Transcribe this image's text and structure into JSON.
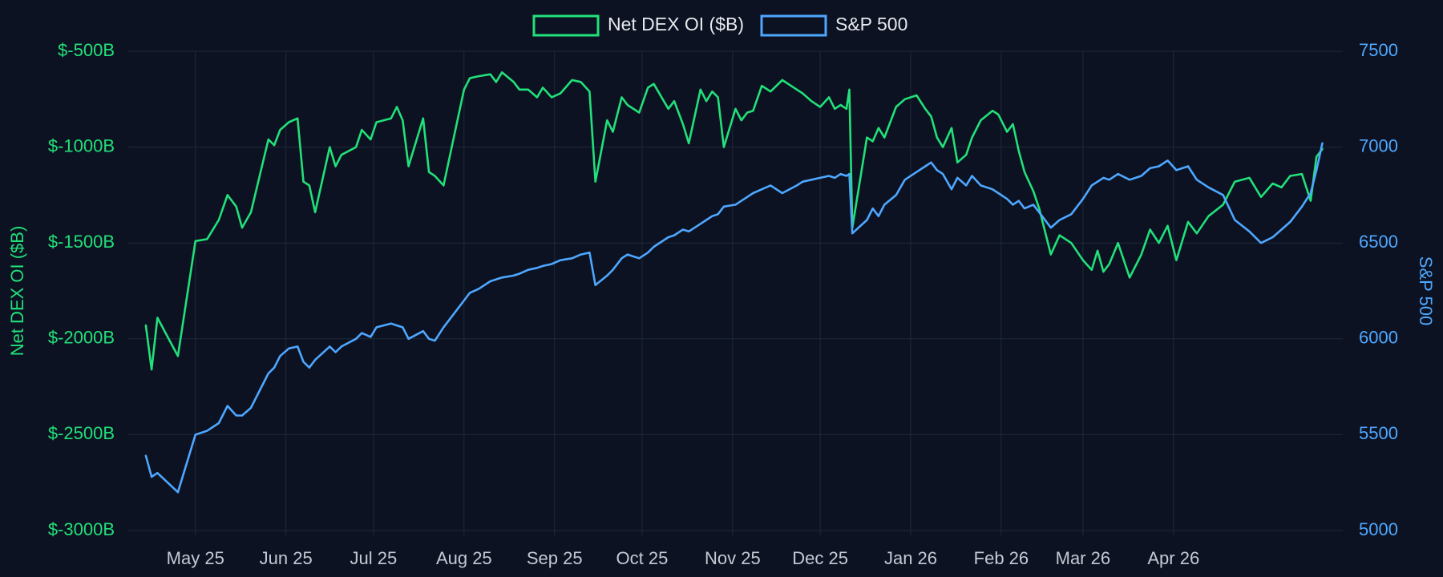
{
  "chart_data": {
    "type": "line",
    "title": "",
    "xlabel": "",
    "legend": {
      "placement": "top-center"
    },
    "grid": true,
    "x_ticks": [
      "May 25",
      "Jun 25",
      "Jul 25",
      "Aug 25",
      "Sep 25",
      "Oct 25",
      "Nov 25",
      "Dec 25",
      "Jan 26",
      "Feb 26",
      "Mar 26",
      "Apr 26"
    ],
    "y_left": {
      "label": "Net DEX OI ($B)",
      "range": [
        -3000,
        -500
      ],
      "ticks": [
        "$-500B",
        "$-1000B",
        "$-1500B",
        "$-2000B",
        "$-2500B",
        "$-3000B"
      ],
      "color": "#22e07a"
    },
    "y_right": {
      "label": "S&P 500",
      "range": [
        5000,
        7500
      ],
      "ticks": [
        "7500",
        "7000",
        "6500",
        "6000",
        "5500",
        "5000"
      ],
      "color": "#4ea7ff"
    },
    "series": [
      {
        "name": "Net DEX OI ($B)",
        "axis": "left",
        "color": "#22e07a",
        "points": [
          [
            "2025-04-14",
            -1930
          ],
          [
            "2025-04-16",
            -2160
          ],
          [
            "2025-04-18",
            -1890
          ],
          [
            "2025-04-25",
            -2090
          ],
          [
            "2025-05-01",
            -1490
          ],
          [
            "2025-05-05",
            -1480
          ],
          [
            "2025-05-09",
            -1380
          ],
          [
            "2025-05-12",
            -1250
          ],
          [
            "2025-05-15",
            -1310
          ],
          [
            "2025-05-17",
            -1420
          ],
          [
            "2025-05-20",
            -1340
          ],
          [
            "2025-05-26",
            -960
          ],
          [
            "2025-05-28",
            -990
          ],
          [
            "2025-05-30",
            -910
          ],
          [
            "2025-06-02",
            -870
          ],
          [
            "2025-06-05",
            -850
          ],
          [
            "2025-06-07",
            -1180
          ],
          [
            "2025-06-09",
            -1200
          ],
          [
            "2025-06-11",
            -1340
          ],
          [
            "2025-06-16",
            -1000
          ],
          [
            "2025-06-18",
            -1100
          ],
          [
            "2025-06-20",
            -1040
          ],
          [
            "2025-06-25",
            -1000
          ],
          [
            "2025-06-27",
            -910
          ],
          [
            "2025-06-30",
            -960
          ],
          [
            "2025-07-02",
            -870
          ],
          [
            "2025-07-07",
            -850
          ],
          [
            "2025-07-09",
            -790
          ],
          [
            "2025-07-11",
            -860
          ],
          [
            "2025-07-13",
            -1100
          ],
          [
            "2025-07-18",
            -850
          ],
          [
            "2025-07-20",
            -1130
          ],
          [
            "2025-07-22",
            -1150
          ],
          [
            "2025-07-25",
            -1200
          ],
          [
            "2025-08-01",
            -700
          ],
          [
            "2025-08-03",
            -640
          ],
          [
            "2025-08-06",
            -630
          ],
          [
            "2025-08-10",
            -620
          ],
          [
            "2025-08-12",
            -660
          ],
          [
            "2025-08-14",
            -610
          ],
          [
            "2025-08-18",
            -660
          ],
          [
            "2025-08-20",
            -700
          ],
          [
            "2025-08-23",
            -700
          ],
          [
            "2025-08-26",
            -740
          ],
          [
            "2025-08-28",
            -690
          ],
          [
            "2025-08-31",
            -740
          ],
          [
            "2025-09-03",
            -720
          ],
          [
            "2025-09-07",
            -650
          ],
          [
            "2025-09-10",
            -660
          ],
          [
            "2025-09-13",
            -710
          ],
          [
            "2025-09-15",
            -1180
          ],
          [
            "2025-09-19",
            -860
          ],
          [
            "2025-09-21",
            -920
          ],
          [
            "2025-09-24",
            -740
          ],
          [
            "2025-09-26",
            -780
          ],
          [
            "2025-09-30",
            -820
          ],
          [
            "2025-10-03",
            -690
          ],
          [
            "2025-10-05",
            -670
          ],
          [
            "2025-10-10",
            -800
          ],
          [
            "2025-10-12",
            -760
          ],
          [
            "2025-10-15",
            -880
          ],
          [
            "2025-10-17",
            -980
          ],
          [
            "2025-10-21",
            -700
          ],
          [
            "2025-10-23",
            -760
          ],
          [
            "2025-10-25",
            -710
          ],
          [
            "2025-10-27",
            -740
          ],
          [
            "2025-10-29",
            -1000
          ],
          [
            "2025-11-02",
            -800
          ],
          [
            "2025-11-04",
            -860
          ],
          [
            "2025-11-06",
            -820
          ],
          [
            "2025-11-08",
            -810
          ],
          [
            "2025-11-11",
            -680
          ],
          [
            "2025-11-14",
            -710
          ],
          [
            "2025-11-18",
            -650
          ],
          [
            "2025-11-23",
            -700
          ],
          [
            "2025-11-25",
            -720
          ],
          [
            "2025-11-28",
            -760
          ],
          [
            "2025-12-01",
            -790
          ],
          [
            "2025-12-04",
            -740
          ],
          [
            "2025-12-06",
            -800
          ],
          [
            "2025-12-08",
            -780
          ],
          [
            "2025-12-10",
            -800
          ],
          [
            "2025-12-11",
            -700
          ],
          [
            "2025-12-12",
            -1420
          ],
          [
            "2025-12-17",
            -950
          ],
          [
            "2025-12-19",
            -970
          ],
          [
            "2025-12-21",
            -900
          ],
          [
            "2025-12-23",
            -950
          ],
          [
            "2025-12-27",
            -790
          ],
          [
            "2025-12-30",
            -750
          ],
          [
            "2026-01-03",
            -730
          ],
          [
            "2026-01-06",
            -800
          ],
          [
            "2026-01-08",
            -840
          ],
          [
            "2026-01-10",
            -950
          ],
          [
            "2026-01-12",
            -1000
          ],
          [
            "2026-01-15",
            -900
          ],
          [
            "2026-01-17",
            -1080
          ],
          [
            "2026-01-20",
            -1040
          ],
          [
            "2026-01-22",
            -950
          ],
          [
            "2026-01-25",
            -860
          ],
          [
            "2026-01-29",
            -810
          ],
          [
            "2026-01-31",
            -830
          ],
          [
            "2026-02-03",
            -920
          ],
          [
            "2026-02-05",
            -880
          ],
          [
            "2026-02-07",
            -1020
          ],
          [
            "2026-02-09",
            -1130
          ],
          [
            "2026-02-12",
            -1230
          ],
          [
            "2026-02-14",
            -1320
          ],
          [
            "2026-02-18",
            -1560
          ],
          [
            "2026-02-21",
            -1460
          ],
          [
            "2026-02-25",
            -1500
          ],
          [
            "2026-03-01",
            -1590
          ],
          [
            "2026-03-04",
            -1640
          ],
          [
            "2026-03-06",
            -1540
          ],
          [
            "2026-03-08",
            -1650
          ],
          [
            "2026-03-10",
            -1610
          ],
          [
            "2026-03-13",
            -1500
          ],
          [
            "2026-03-17",
            -1680
          ],
          [
            "2026-03-21",
            -1560
          ],
          [
            "2026-03-24",
            -1430
          ],
          [
            "2026-03-27",
            -1500
          ],
          [
            "2026-03-30",
            -1410
          ],
          [
            "2026-04-02",
            -1590
          ],
          [
            "2026-04-06",
            -1390
          ],
          [
            "2026-04-09",
            -1450
          ],
          [
            "2026-04-13",
            -1360
          ],
          [
            "2026-04-18",
            -1300
          ],
          [
            "2026-04-22",
            -1180
          ],
          [
            "2026-04-27",
            -1160
          ],
          [
            "2026-05-01",
            -1260
          ],
          [
            "2026-05-05",
            -1190
          ],
          [
            "2026-05-08",
            -1210
          ],
          [
            "2026-05-11",
            -1150
          ],
          [
            "2026-05-15",
            -1140
          ],
          [
            "2026-05-18",
            -1280
          ],
          [
            "2026-05-20",
            -1050
          ],
          [
            "2026-05-22",
            -1010
          ]
        ]
      },
      {
        "name": "S&P 500",
        "axis": "right",
        "color": "#4ea7ff",
        "points": [
          [
            "2025-04-14",
            5390
          ],
          [
            "2025-04-16",
            5280
          ],
          [
            "2025-04-18",
            5300
          ],
          [
            "2025-04-25",
            5200
          ],
          [
            "2025-05-01",
            5500
          ],
          [
            "2025-05-05",
            5520
          ],
          [
            "2025-05-09",
            5560
          ],
          [
            "2025-05-12",
            5650
          ],
          [
            "2025-05-15",
            5600
          ],
          [
            "2025-05-17",
            5600
          ],
          [
            "2025-05-20",
            5640
          ],
          [
            "2025-05-26",
            5820
          ],
          [
            "2025-05-28",
            5850
          ],
          [
            "2025-05-30",
            5910
          ],
          [
            "2025-06-02",
            5950
          ],
          [
            "2025-06-05",
            5960
          ],
          [
            "2025-06-07",
            5880
          ],
          [
            "2025-06-09",
            5850
          ],
          [
            "2025-06-11",
            5890
          ],
          [
            "2025-06-16",
            5960
          ],
          [
            "2025-06-18",
            5930
          ],
          [
            "2025-06-20",
            5960
          ],
          [
            "2025-06-25",
            6000
          ],
          [
            "2025-06-27",
            6030
          ],
          [
            "2025-06-30",
            6010
          ],
          [
            "2025-07-02",
            6060
          ],
          [
            "2025-07-07",
            6080
          ],
          [
            "2025-07-09",
            6070
          ],
          [
            "2025-07-11",
            6060
          ],
          [
            "2025-07-13",
            6000
          ],
          [
            "2025-07-18",
            6040
          ],
          [
            "2025-07-20",
            6000
          ],
          [
            "2025-07-22",
            5990
          ],
          [
            "2025-07-25",
            6060
          ],
          [
            "2025-08-01",
            6200
          ],
          [
            "2025-08-03",
            6240
          ],
          [
            "2025-08-06",
            6260
          ],
          [
            "2025-08-10",
            6300
          ],
          [
            "2025-08-12",
            6310
          ],
          [
            "2025-08-14",
            6320
          ],
          [
            "2025-08-18",
            6330
          ],
          [
            "2025-08-20",
            6340
          ],
          [
            "2025-08-23",
            6360
          ],
          [
            "2025-08-26",
            6370
          ],
          [
            "2025-08-28",
            6380
          ],
          [
            "2025-08-31",
            6390
          ],
          [
            "2025-09-03",
            6410
          ],
          [
            "2025-09-07",
            6420
          ],
          [
            "2025-09-10",
            6440
          ],
          [
            "2025-09-13",
            6450
          ],
          [
            "2025-09-15",
            6280
          ],
          [
            "2025-09-19",
            6330
          ],
          [
            "2025-09-21",
            6360
          ],
          [
            "2025-09-24",
            6420
          ],
          [
            "2025-09-26",
            6440
          ],
          [
            "2025-09-30",
            6420
          ],
          [
            "2025-10-03",
            6450
          ],
          [
            "2025-10-05",
            6480
          ],
          [
            "2025-10-10",
            6530
          ],
          [
            "2025-10-12",
            6540
          ],
          [
            "2025-10-15",
            6570
          ],
          [
            "2025-10-17",
            6560
          ],
          [
            "2025-10-21",
            6600
          ],
          [
            "2025-10-23",
            6620
          ],
          [
            "2025-10-25",
            6640
          ],
          [
            "2025-10-27",
            6650
          ],
          [
            "2025-10-29",
            6690
          ],
          [
            "2025-11-02",
            6700
          ],
          [
            "2025-11-04",
            6720
          ],
          [
            "2025-11-06",
            6740
          ],
          [
            "2025-11-08",
            6760
          ],
          [
            "2025-11-11",
            6780
          ],
          [
            "2025-11-14",
            6800
          ],
          [
            "2025-11-18",
            6760
          ],
          [
            "2025-11-23",
            6800
          ],
          [
            "2025-11-25",
            6820
          ],
          [
            "2025-11-28",
            6830
          ],
          [
            "2025-12-01",
            6840
          ],
          [
            "2025-12-04",
            6850
          ],
          [
            "2025-12-06",
            6840
          ],
          [
            "2025-12-08",
            6860
          ],
          [
            "2025-12-10",
            6850
          ],
          [
            "2025-12-11",
            6860
          ],
          [
            "2025-12-12",
            6550
          ],
          [
            "2025-12-17",
            6620
          ],
          [
            "2025-12-19",
            6680
          ],
          [
            "2025-12-21",
            6640
          ],
          [
            "2025-12-23",
            6700
          ],
          [
            "2025-12-27",
            6750
          ],
          [
            "2025-12-30",
            6830
          ],
          [
            "2026-01-03",
            6870
          ],
          [
            "2026-01-06",
            6900
          ],
          [
            "2026-01-08",
            6920
          ],
          [
            "2026-01-10",
            6880
          ],
          [
            "2026-01-12",
            6860
          ],
          [
            "2026-01-15",
            6780
          ],
          [
            "2026-01-17",
            6840
          ],
          [
            "2026-01-20",
            6800
          ],
          [
            "2026-01-22",
            6850
          ],
          [
            "2026-01-25",
            6800
          ],
          [
            "2026-01-29",
            6780
          ],
          [
            "2026-01-31",
            6760
          ],
          [
            "2026-02-03",
            6730
          ],
          [
            "2026-02-05",
            6700
          ],
          [
            "2026-02-07",
            6720
          ],
          [
            "2026-02-09",
            6680
          ],
          [
            "2026-02-12",
            6700
          ],
          [
            "2026-02-14",
            6660
          ],
          [
            "2026-02-18",
            6580
          ],
          [
            "2026-02-21",
            6620
          ],
          [
            "2026-02-25",
            6650
          ],
          [
            "2026-03-01",
            6730
          ],
          [
            "2026-03-04",
            6800
          ],
          [
            "2026-03-06",
            6820
          ],
          [
            "2026-03-08",
            6840
          ],
          [
            "2026-03-10",
            6830
          ],
          [
            "2026-03-13",
            6860
          ],
          [
            "2026-03-17",
            6830
          ],
          [
            "2026-03-21",
            6850
          ],
          [
            "2026-03-24",
            6890
          ],
          [
            "2026-03-27",
            6900
          ],
          [
            "2026-03-30",
            6930
          ],
          [
            "2026-04-02",
            6880
          ],
          [
            "2026-04-06",
            6900
          ],
          [
            "2026-04-09",
            6830
          ],
          [
            "2026-04-13",
            6790
          ],
          [
            "2026-04-18",
            6750
          ],
          [
            "2026-04-22",
            6620
          ],
          [
            "2026-04-27",
            6560
          ],
          [
            "2026-05-01",
            6500
          ],
          [
            "2026-05-05",
            6530
          ],
          [
            "2026-05-08",
            6570
          ],
          [
            "2026-05-11",
            6610
          ],
          [
            "2026-05-15",
            6690
          ],
          [
            "2026-05-18",
            6760
          ],
          [
            "2026-05-20",
            6880
          ],
          [
            "2026-05-22",
            7020
          ]
        ]
      }
    ]
  }
}
